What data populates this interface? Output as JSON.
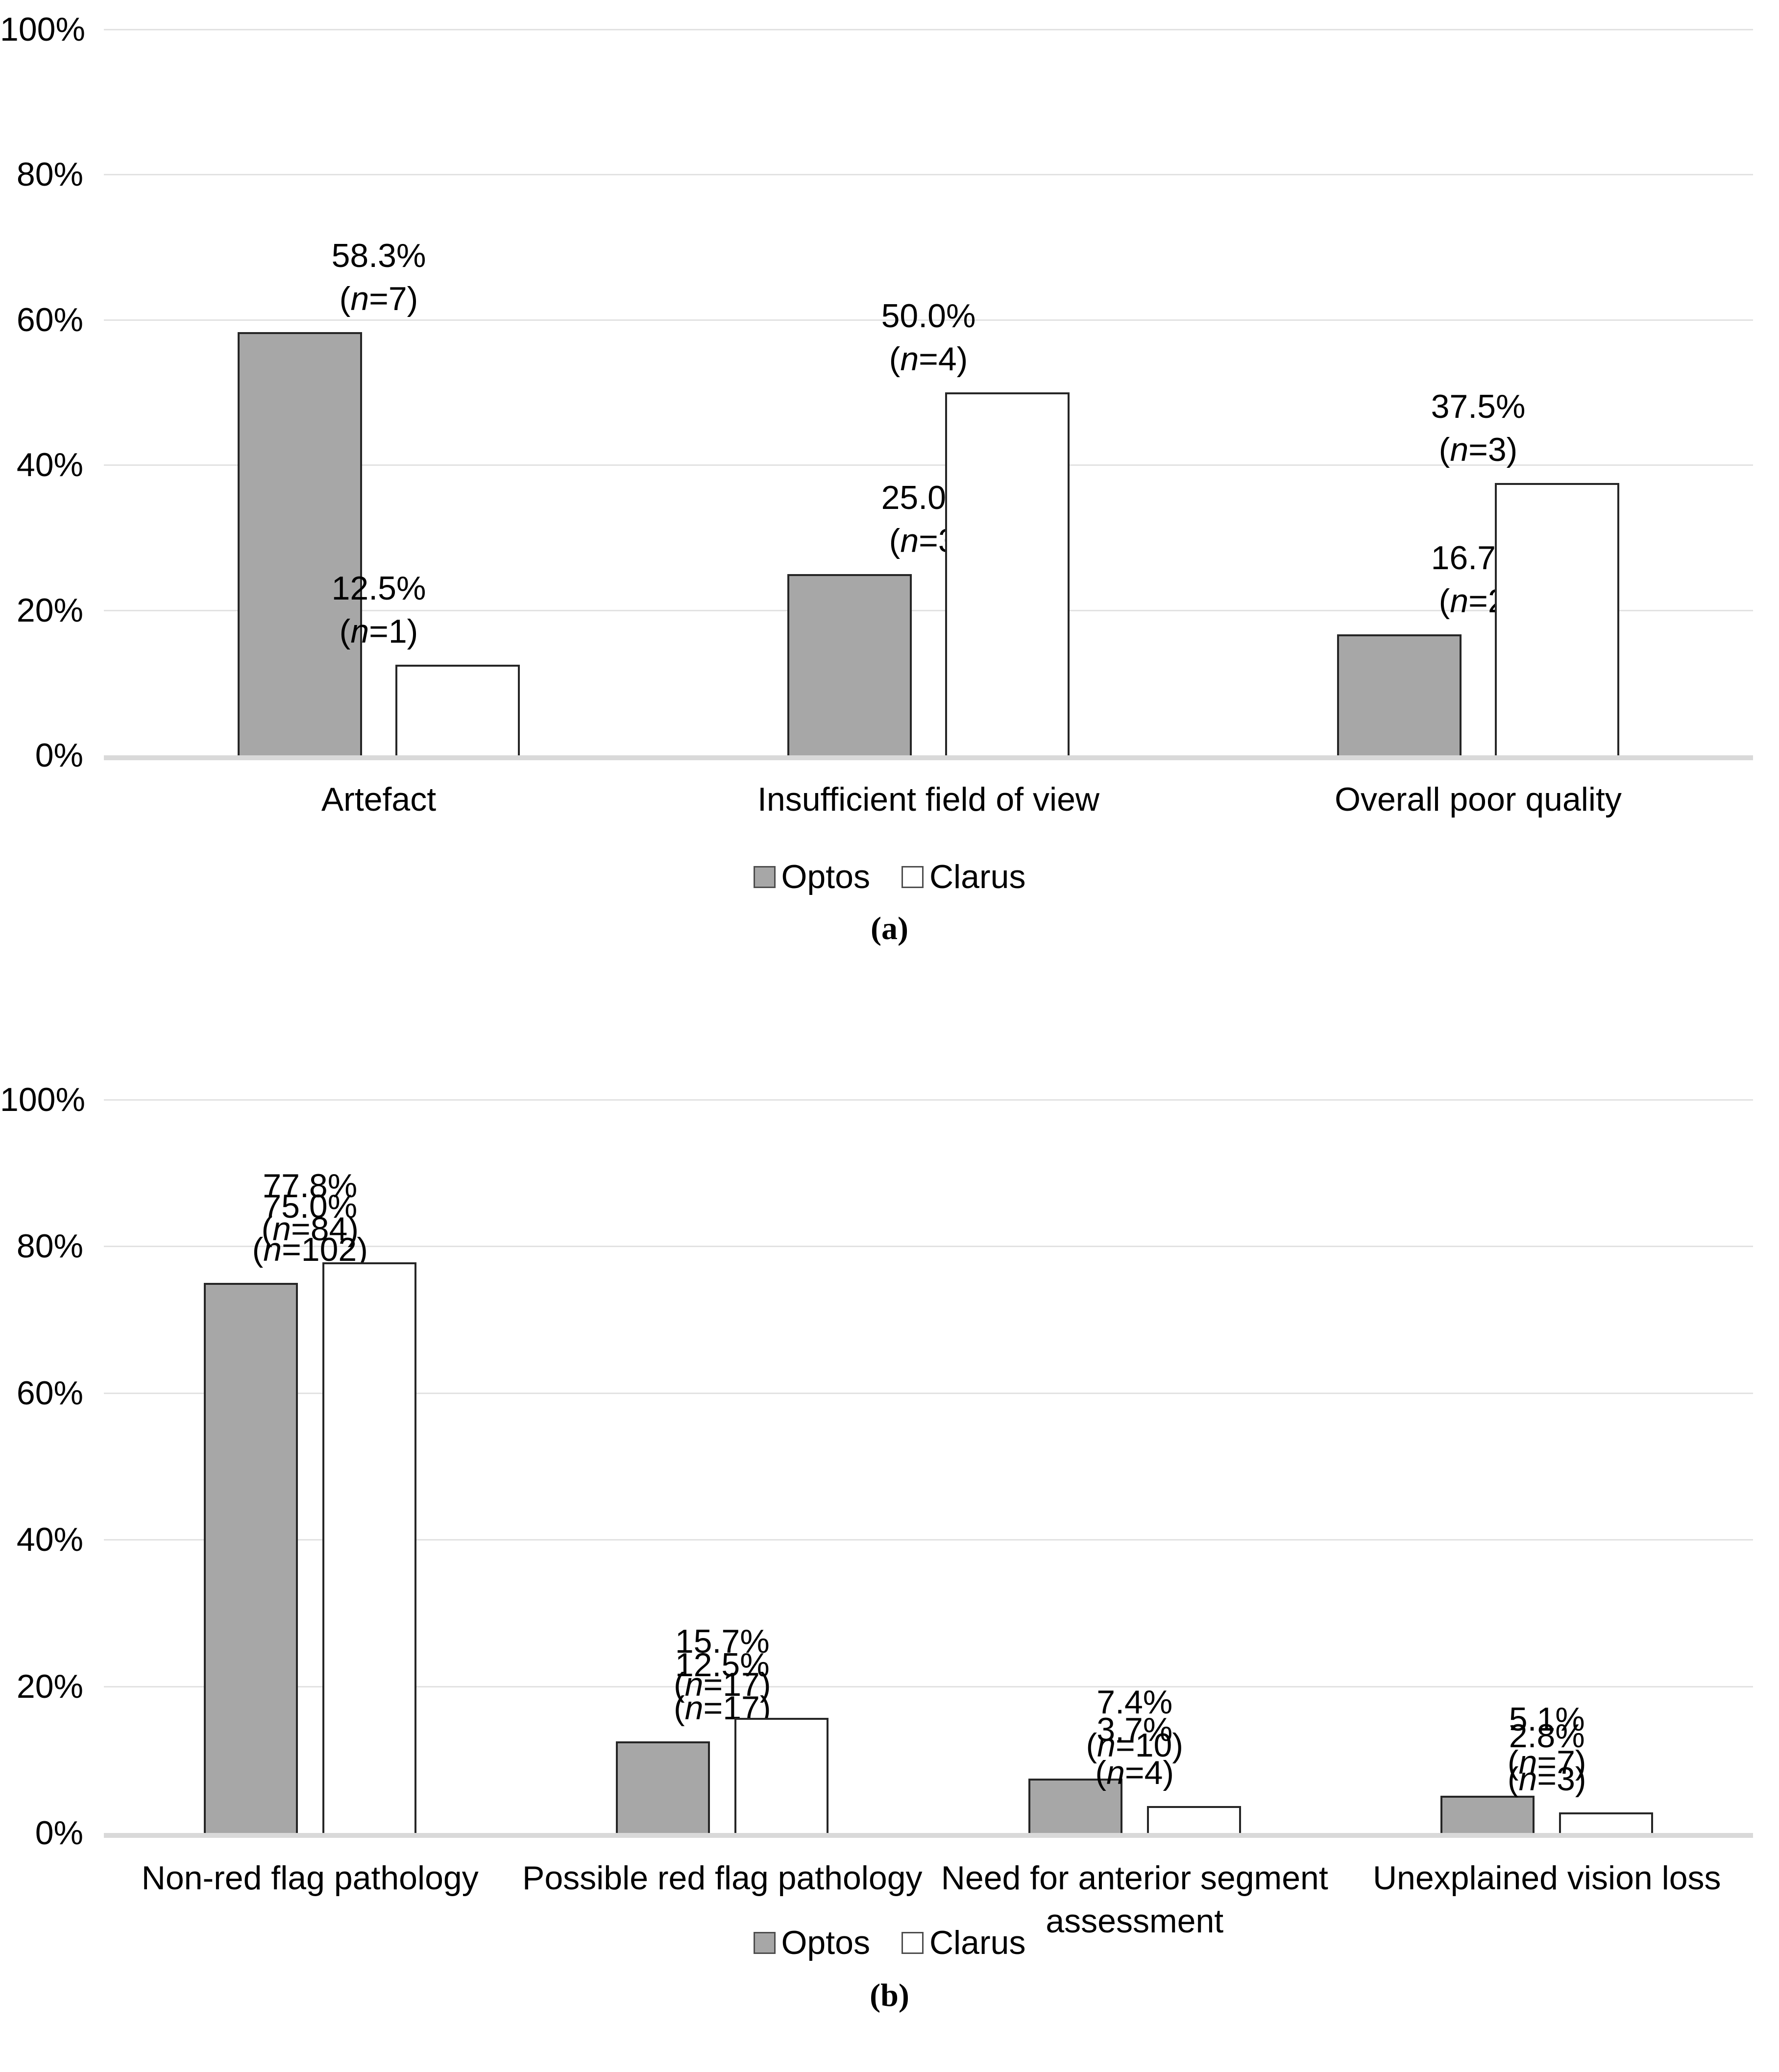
{
  "figure": {
    "background": "#FFFFFF",
    "text_color": "#000000"
  },
  "colors": {
    "optos_fill": "#A7A7A7",
    "clarus_fill": "#FFFFFF",
    "bar_border": "#262626",
    "gridline": "#E2E2E2",
    "axis_baseline": "#D9D9D9",
    "legend_swatch_border": "#4D4D4D"
  },
  "chart_data": [
    {
      "panel": "a",
      "caption": "(a)",
      "type": "bar",
      "title": "",
      "xlabel": "",
      "ylabel": "",
      "ylim": [
        0,
        100
      ],
      "ytick_labels": [
        "0%",
        "20%",
        "40%",
        "60%",
        "80%",
        "100%"
      ],
      "grid": true,
      "legend_position": "bottom",
      "categories": [
        "Artefact",
        "Insufficient field of view",
        "Overall poor quality"
      ],
      "category_display_lines": [
        [
          "Artefact"
        ],
        [
          "Insufficient field of view"
        ],
        [
          "Overall poor quality"
        ]
      ],
      "series": [
        {
          "name": "Optos",
          "values": [
            58.3,
            25.0,
            16.7
          ],
          "value_labels": [
            "58.3%",
            "25.0%",
            "16.7%"
          ],
          "n": [
            7,
            3,
            2
          ]
        },
        {
          "name": "Clarus",
          "values": [
            12.5,
            50.0,
            37.5
          ],
          "value_labels": [
            "12.5%",
            "50.0%",
            "37.5%"
          ],
          "n": [
            1,
            4,
            3
          ]
        }
      ]
    },
    {
      "panel": "b",
      "caption": "(b)",
      "type": "bar",
      "title": "",
      "xlabel": "",
      "ylabel": "",
      "ylim": [
        0,
        100
      ],
      "ytick_labels": [
        "0%",
        "20%",
        "40%",
        "60%",
        "80%",
        "100%"
      ],
      "grid": true,
      "legend_position": "bottom",
      "categories": [
        "Non-red flag pathology",
        "Possible red flag pathology",
        "Need for anterior segment assessment",
        "Unexplained vision loss"
      ],
      "category_display_lines": [
        [
          "Non-red flag pathology"
        ],
        [
          "Possible red flag pathology"
        ],
        [
          "Need for anterior segment",
          "assessment"
        ],
        [
          "Unexplained vision loss"
        ]
      ],
      "series": [
        {
          "name": "Optos",
          "values": [
            75.0,
            12.5,
            7.4,
            5.1
          ],
          "value_labels": [
            "75.0%",
            "12.5%",
            "7.4%",
            "5.1%"
          ],
          "n": [
            102,
            17,
            10,
            7
          ]
        },
        {
          "name": "Clarus",
          "values": [
            77.8,
            15.7,
            3.7,
            2.8
          ],
          "value_labels": [
            "77.8%",
            "15.7%",
            "3.7%",
            "2.8%"
          ],
          "n": [
            84,
            17,
            4,
            3
          ]
        }
      ]
    }
  ]
}
